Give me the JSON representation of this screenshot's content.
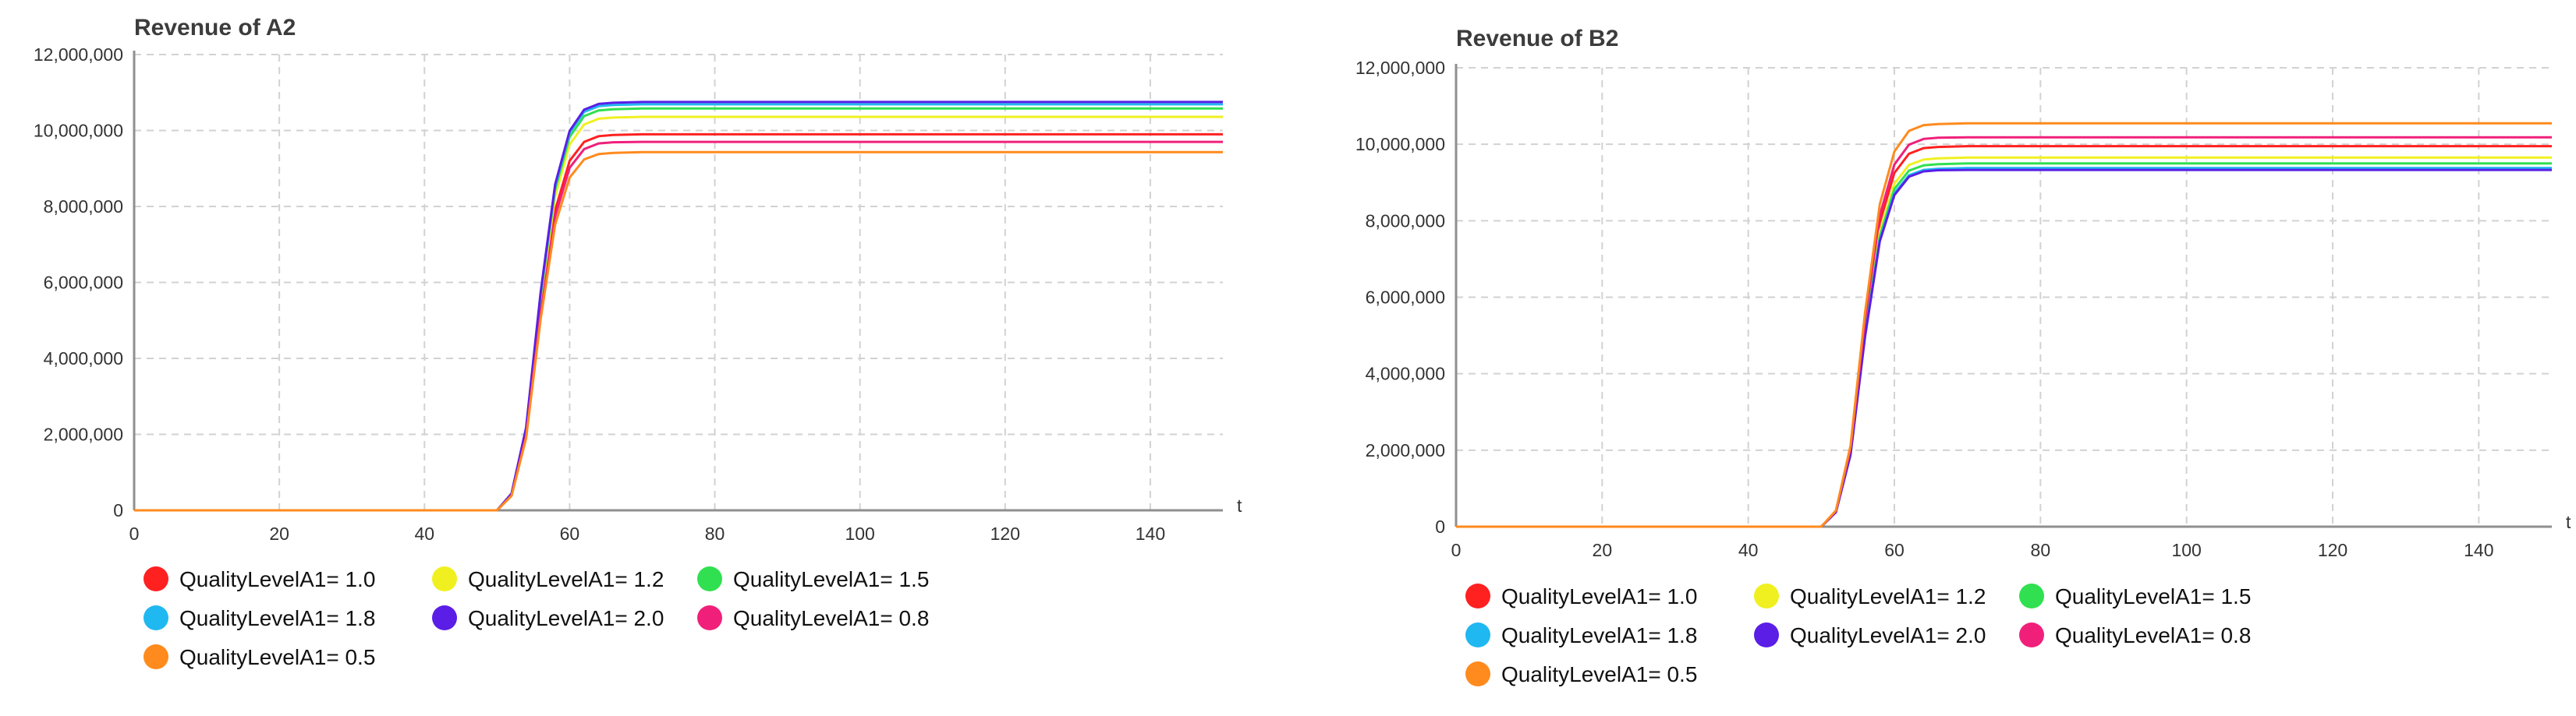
{
  "chart_data": [
    {
      "type": "line",
      "title": "Revenue of A2",
      "xlabel": "t",
      "ylabel": "",
      "xlim": [
        0,
        150
      ],
      "ylim": [
        0,
        12000000
      ],
      "x_ticks": [
        "0",
        "20",
        "40",
        "60",
        "80",
        "100",
        "120",
        "140"
      ],
      "y_ticks": [
        "0",
        "2,000,000",
        "4,000,000",
        "6,000,000",
        "8,000,000",
        "10,000,000",
        "12,000,000"
      ],
      "grid": true,
      "legend_placement": "bottom",
      "series": [
        {
          "name": "QualityLevelA1= 1.0",
          "color": "#ff2020",
          "x": [
            0,
            50,
            52,
            54,
            56,
            58,
            60,
            62,
            64,
            66,
            70,
            150
          ],
          "y": [
            0,
            0,
            400000,
            2000000,
            5300000,
            7900000,
            9200000,
            9700000,
            9850000,
            9880000,
            9900000,
            9900000
          ]
        },
        {
          "name": "QualityLevelA1= 1.2",
          "color": "#f0f020",
          "x": [
            0,
            50,
            52,
            54,
            56,
            58,
            60,
            62,
            64,
            66,
            70,
            150
          ],
          "y": [
            0,
            0,
            420000,
            2080000,
            5530000,
            8260000,
            9630000,
            10160000,
            10310000,
            10340000,
            10360000,
            10360000
          ]
        },
        {
          "name": "QualityLevelA1= 1.5",
          "color": "#30e050",
          "x": [
            0,
            50,
            52,
            54,
            56,
            58,
            60,
            62,
            64,
            66,
            70,
            150
          ],
          "y": [
            0,
            0,
            430000,
            2130000,
            5640000,
            8440000,
            9830000,
            10380000,
            10530000,
            10560000,
            10580000,
            10580000
          ]
        },
        {
          "name": "QualityLevelA1= 1.8",
          "color": "#20b8f0",
          "x": [
            0,
            50,
            52,
            54,
            56,
            58,
            60,
            62,
            64,
            66,
            70,
            150
          ],
          "y": [
            0,
            0,
            435000,
            2150000,
            5700000,
            8530000,
            9940000,
            10490000,
            10640000,
            10670000,
            10690000,
            10690000
          ]
        },
        {
          "name": "QualityLevelA1= 2.0",
          "color": "#5a1ee6",
          "x": [
            0,
            50,
            52,
            54,
            56,
            58,
            60,
            62,
            64,
            66,
            70,
            150
          ],
          "y": [
            0,
            0,
            440000,
            2180000,
            5740000,
            8580000,
            9990000,
            10550000,
            10700000,
            10730000,
            10750000,
            10750000
          ]
        },
        {
          "name": "QualityLevelA1= 0.8",
          "color": "#f0207a",
          "x": [
            0,
            50,
            52,
            54,
            56,
            58,
            60,
            62,
            64,
            66,
            70,
            150
          ],
          "y": [
            0,
            0,
            390000,
            1960000,
            5180000,
            7740000,
            9020000,
            9510000,
            9660000,
            9690000,
            9700000,
            9700000
          ]
        },
        {
          "name": "QualityLevelA1= 0.5",
          "color": "#ff8a1e",
          "x": [
            0,
            50,
            52,
            54,
            56,
            58,
            60,
            62,
            64,
            66,
            70,
            150
          ],
          "y": [
            0,
            0,
            380000,
            1900000,
            5030000,
            7520000,
            8760000,
            9240000,
            9380000,
            9410000,
            9430000,
            9430000
          ]
        }
      ]
    },
    {
      "type": "line",
      "title": "Revenue of B2",
      "xlabel": "t",
      "ylabel": "",
      "xlim": [
        0,
        150
      ],
      "ylim": [
        0,
        12000000
      ],
      "x_ticks": [
        "0",
        "20",
        "40",
        "60",
        "80",
        "100",
        "120",
        "140"
      ],
      "y_ticks": [
        "0",
        "2,000,000",
        "4,000,000",
        "6,000,000",
        "8,000,000",
        "10,000,000",
        "12,000,000"
      ],
      "grid": true,
      "legend_placement": "bottom",
      "series": [
        {
          "name": "QualityLevelA1= 1.0",
          "color": "#ff2020",
          "x": [
            0,
            50,
            52,
            54,
            56,
            58,
            60,
            62,
            64,
            66,
            70,
            150
          ],
          "y": [
            0,
            0,
            400000,
            2000000,
            5300000,
            7950000,
            9250000,
            9750000,
            9900000,
            9930000,
            9950000,
            9950000
          ]
        },
        {
          "name": "QualityLevelA1= 1.2",
          "color": "#f0f020",
          "x": [
            0,
            50,
            52,
            54,
            56,
            58,
            60,
            62,
            64,
            66,
            70,
            150
          ],
          "y": [
            0,
            0,
            390000,
            1940000,
            5140000,
            7710000,
            8970000,
            9460000,
            9600000,
            9630000,
            9650000,
            9650000
          ]
        },
        {
          "name": "QualityLevelA1= 1.5",
          "color": "#30e050",
          "x": [
            0,
            50,
            52,
            54,
            56,
            58,
            60,
            62,
            64,
            66,
            70,
            150
          ],
          "y": [
            0,
            0,
            385000,
            1910000,
            5060000,
            7590000,
            8830000,
            9310000,
            9450000,
            9480000,
            9500000,
            9500000
          ]
        },
        {
          "name": "QualityLevelA1= 1.8",
          "color": "#20b8f0",
          "x": [
            0,
            50,
            52,
            54,
            56,
            58,
            60,
            62,
            64,
            66,
            70,
            150
          ],
          "y": [
            0,
            0,
            380000,
            1890000,
            5010000,
            7500000,
            8720000,
            9190000,
            9330000,
            9360000,
            9380000,
            9380000
          ]
        },
        {
          "name": "QualityLevelA1= 2.0",
          "color": "#5a1ee6",
          "x": [
            0,
            50,
            52,
            54,
            56,
            58,
            60,
            62,
            64,
            66,
            70,
            150
          ],
          "y": [
            0,
            0,
            378000,
            1880000,
            4980000,
            7460000,
            8670000,
            9150000,
            9290000,
            9320000,
            9330000,
            9330000
          ]
        },
        {
          "name": "QualityLevelA1= 0.8",
          "color": "#f0207a",
          "x": [
            0,
            50,
            52,
            54,
            56,
            58,
            60,
            62,
            64,
            66,
            70,
            150
          ],
          "y": [
            0,
            0,
            410000,
            2050000,
            5430000,
            8140000,
            9470000,
            9990000,
            10140000,
            10170000,
            10180000,
            10180000
          ]
        },
        {
          "name": "QualityLevelA1= 0.5",
          "color": "#ff8a1e",
          "x": [
            0,
            50,
            52,
            54,
            56,
            58,
            60,
            62,
            64,
            66,
            70,
            150
          ],
          "y": [
            0,
            0,
            425000,
            2120000,
            5620000,
            8430000,
            9810000,
            10350000,
            10500000,
            10530000,
            10550000,
            10550000
          ]
        }
      ]
    }
  ]
}
